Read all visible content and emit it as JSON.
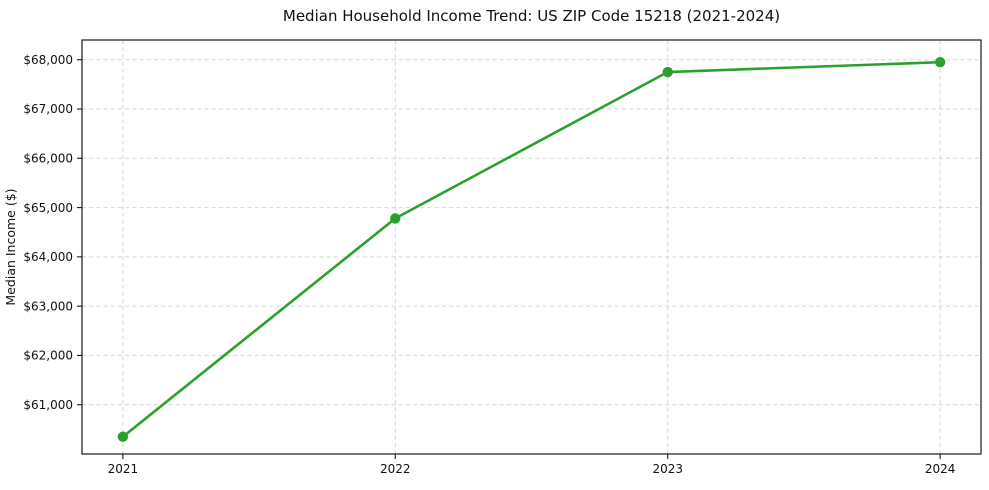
{
  "chart_data": {
    "type": "line",
    "title": "Median Household Income Trend: US ZIP Code 15218 (2021-2024)",
    "xlabel": "",
    "ylabel": "Median Income ($)",
    "categories": [
      "2021",
      "2022",
      "2023",
      "2024"
    ],
    "x": [
      2021,
      2022,
      2023,
      2024
    ],
    "series": [
      {
        "name": "Median Household Income",
        "values": [
          60350,
          64780,
          67750,
          67950
        ],
        "color": "#2ca02c",
        "marker": "circle"
      }
    ],
    "xlim": [
      2020.85,
      2024.15
    ],
    "ylim": [
      60000,
      68400
    ],
    "yticks": [
      61000,
      62000,
      63000,
      64000,
      65000,
      66000,
      67000,
      68000
    ],
    "ytick_labels": [
      "$61,000",
      "$62,000",
      "$63,000",
      "$64,000",
      "$65,000",
      "$66,000",
      "$67,000",
      "$68,000"
    ],
    "grid": true,
    "grid_style": "dashed",
    "grid_color": "#d6d6d6",
    "spine_color": "#1a1a1a",
    "tick_color": "#1a1a1a",
    "legend_position": "none"
  }
}
